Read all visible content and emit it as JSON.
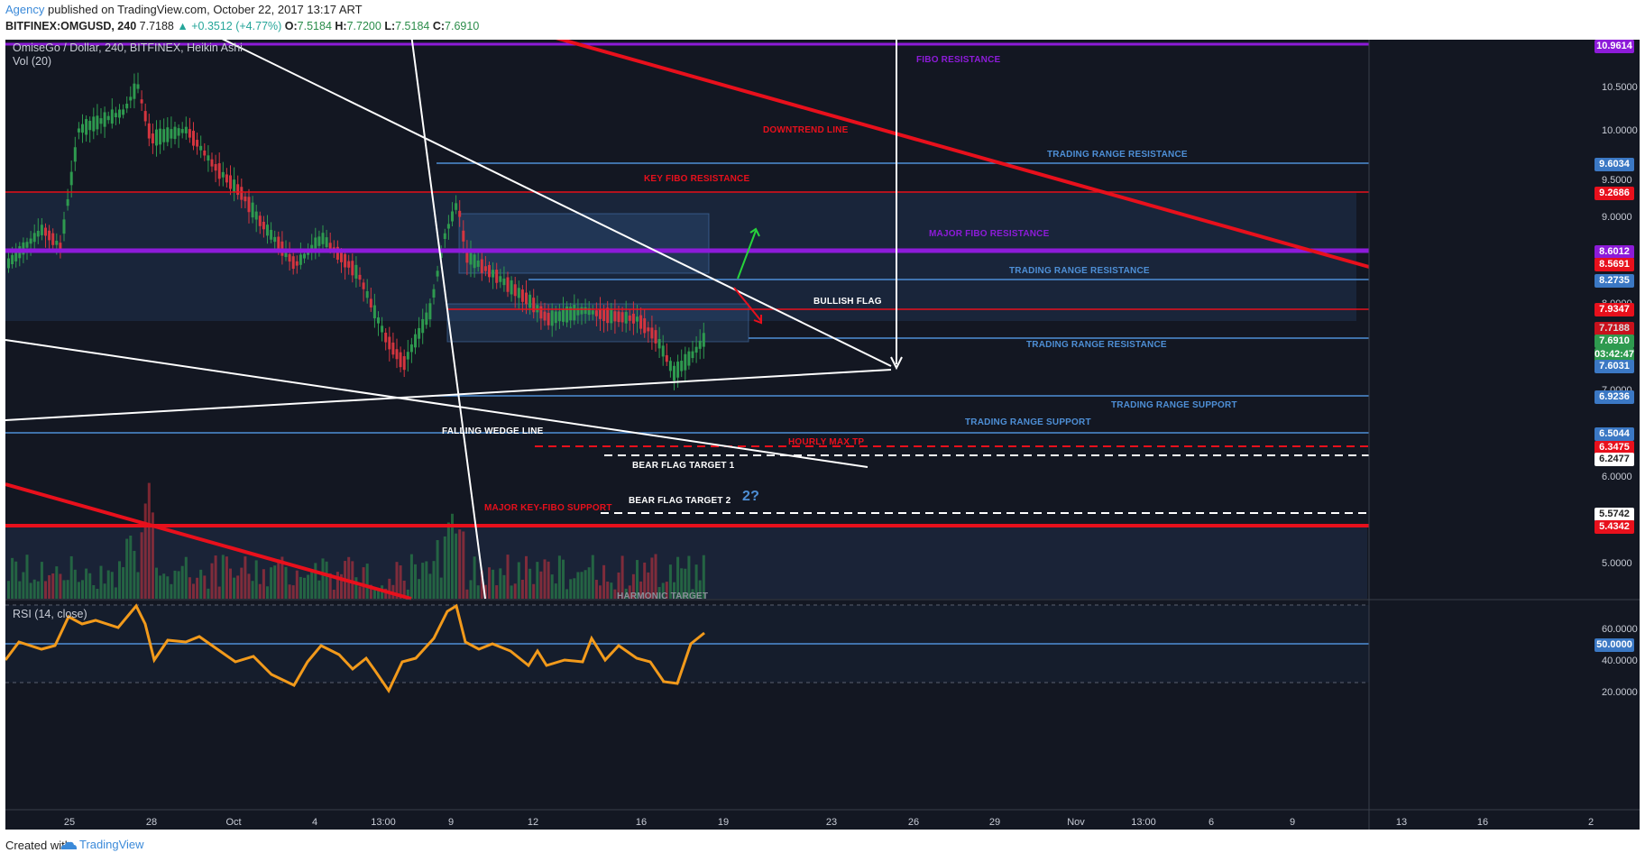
{
  "header": {
    "author": "Agency",
    "published": "published on TradingView.com, October 22, 2017 13:17 ART",
    "symbol": "BITFINEX:OMGUSD, 240",
    "last": "7.7188",
    "change": "▲ +0.3512 (+4.77%)",
    "o_label": "O:",
    "o_val": "7.5184",
    "h_label": "H:",
    "h_val": "7.7200",
    "l_label": "L:",
    "l_val": "7.5184",
    "c_label": "C:",
    "c_val": "7.6910"
  },
  "pane": {
    "title": "OmiseGo / Dollar, 240, BITFINEX, Heikin Ashi",
    "vol": "Vol (20)",
    "rsi": "RSI (14, close)"
  },
  "annotations": {
    "fibo_resistance": "FIBO RESISTANCE",
    "downtrend_line": "DOWNTREND LINE",
    "trading_range_resistance_1": "TRADING RANGE RESISTANCE",
    "key_fibo_resistance": "KEY FIBO RESISTANCE",
    "major_fibo_resistance": "MAJOR FIBO RESISTANCE",
    "trading_range_resistance_2": "TRADING RANGE RESISTANCE",
    "bullish_flag": "BULLISH FLAG",
    "trading_range_resistance_3": "TRADING RANGE RESISTANCE",
    "trading_range_support_1": "TRADING RANGE SUPPORT",
    "trading_range_support_2": "TRADING RANGE SUPPORT",
    "falling_wedge_line": "FALLING WEDGE LINE",
    "hourly_max_tp": "HOURLY MAX TP",
    "bear_flag_target_1": "BEAR FLAG TARGET 1",
    "bear_flag_target_2": "BEAR FLAG TARGET 2",
    "question": "2?",
    "major_key_fibo_support": "MAJOR KEY-FIBO SUPPORT",
    "harmonic_target": "HARMONIC TARGET"
  },
  "price_badges": {
    "b1": "10.9614",
    "b2": "9.6034",
    "b3": "9.2686",
    "b4": "8.6012",
    "b5": "8.5691",
    "b6": "8.2735",
    "b7": "7.9347",
    "b8": "7.7188",
    "b9": "7.6910",
    "b10": "03:42:47",
    "b11": "7.6031",
    "b12": "6.9236",
    "b13": "6.5044",
    "b14": "6.3475",
    "b15": "6.2477",
    "b16": "5.5742",
    "b17": "5.4342"
  },
  "price_axis": [
    "10.5000",
    "10.0000",
    "9.5000",
    "9.0000",
    "8.0000",
    "7.0000",
    "6.0000",
    "5.0000"
  ],
  "rsi_axis": [
    "60.0000",
    "50.0000",
    "40.0000",
    "20.0000"
  ],
  "time_axis": [
    "25",
    "28",
    "Oct",
    "4",
    "13:00",
    "9",
    "12",
    "16",
    "19",
    "23",
    "26",
    "29",
    "Nov",
    "13:00",
    "6",
    "9",
    "13",
    "16",
    "2"
  ],
  "footer": {
    "created": "Created with",
    "brand": "TradingView"
  },
  "colors": {
    "background": "#131722",
    "red_line": "#e8101c",
    "purple_line": "#8d1bd9",
    "blue_label": "#4e8fd6",
    "rsi_line": "#f29a1b",
    "up_candle": "#2e9a4f",
    "down_candle": "#d4353f"
  }
}
